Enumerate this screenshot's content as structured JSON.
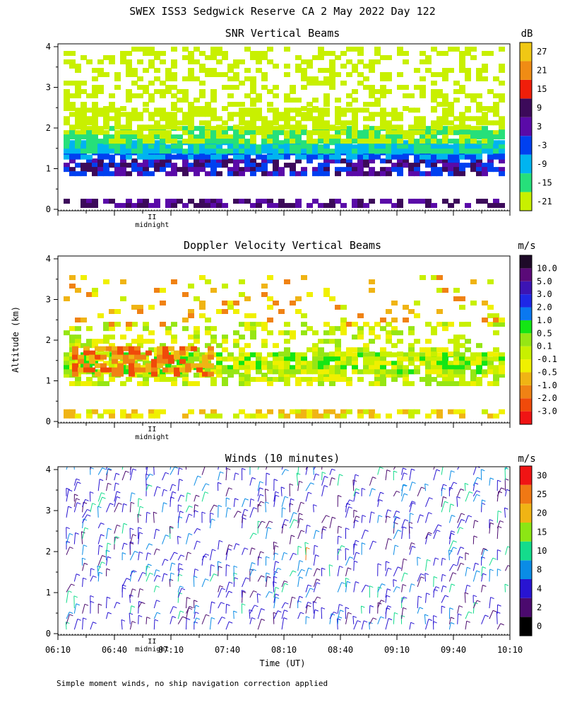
{
  "header": {
    "title": "SWEX ISS3 Sedgwick Reserve CA   2 May 2022 Day 122"
  },
  "footer": {
    "note": "Simple moment winds, no ship navigation correction applied"
  },
  "axes": {
    "ylabel": "Altitude (km)",
    "xlabel": "Time (UT)",
    "midnight_label": "midnight",
    "midnight_marker": "II"
  },
  "colors": {
    "snr": [
      "#c8f000",
      "#26e07a",
      "#00b4f0",
      "#0040f0",
      "#5a0aa8",
      "#3c0a5a",
      "#f01e0a",
      "#f08c14",
      "#f0c814"
    ],
    "doppler": [
      "#f01414",
      "#f04a0a",
      "#f08214",
      "#f0b414",
      "#f0f000",
      "#c8f000",
      "#96e614",
      "#14e614",
      "#0a78f0",
      "#1e28e6",
      "#3c14b4",
      "#5a0a78",
      "#1e0a28"
    ],
    "winds": [
      "#000000",
      "#4b0a6e",
      "#2814d2",
      "#0a8ce6",
      "#14dc8c",
      "#8ce614",
      "#f0b414",
      "#f07814",
      "#f01414"
    ]
  },
  "chart_data": [
    {
      "id": "snr",
      "type": "heatmap",
      "title": "SNR Vertical Beams",
      "unit": "dB",
      "ylim": [
        0,
        4
      ],
      "yticks": [
        "0",
        "1",
        "2",
        "3",
        "4"
      ],
      "xlim_hours": [
        6.1667,
        10.1667
      ],
      "colorbar_labels": [
        "-21",
        "-15",
        "-9",
        "-3",
        "3",
        "9",
        "15",
        "21",
        "27"
      ],
      "layers": [
        {
          "alt_km": [
            0.1,
            0.25
          ],
          "value_db": 9,
          "coverage": "intermittent"
        },
        {
          "alt_km": [
            0.9,
            1.3
          ],
          "value_db": 3,
          "coverage": "continuous"
        },
        {
          "alt_km": [
            1.3,
            1.6
          ],
          "value_db": -6,
          "coverage": "continuous"
        },
        {
          "alt_km": [
            1.6,
            2.4
          ],
          "value_db": -15,
          "coverage": "continuous"
        },
        {
          "alt_km": [
            2.4,
            4.0
          ],
          "value_db": -21,
          "coverage": "patchy"
        }
      ]
    },
    {
      "id": "doppler",
      "type": "heatmap",
      "title": "Doppler Velocity Vertical Beams",
      "unit": "m/s",
      "ylim": [
        0,
        4
      ],
      "yticks": [
        "0",
        "1",
        "2",
        "3",
        "4"
      ],
      "xlim_hours": [
        6.1667,
        10.1667
      ],
      "colorbar_labels": [
        "-3.0",
        "-2.0",
        "-1.0",
        "-0.5",
        "-0.1",
        "0.1",
        "0.5",
        "1.0",
        "2.0",
        "3.0",
        "5.0",
        "10.0"
      ],
      "layers": [
        {
          "alt_km": [
            0.1,
            0.3
          ],
          "value_ms": -0.1,
          "coverage": "intermittent"
        },
        {
          "alt_km": [
            0.9,
            1.7
          ],
          "value_ms": 0.3,
          "coverage": "continuous"
        },
        {
          "alt_km": [
            1.2,
            1.8
          ],
          "value_ms": -1.0,
          "coverage": "early hours"
        },
        {
          "alt_km": [
            1.7,
            2.4
          ],
          "value_ms": 0.1,
          "coverage": "patchy"
        },
        {
          "alt_km": [
            2.4,
            3.6
          ],
          "value_ms": 0.1,
          "coverage": "sparse"
        }
      ]
    },
    {
      "id": "winds",
      "type": "scatter",
      "title": "Winds (10 minutes)",
      "unit": "m/s",
      "ylim": [
        0,
        4
      ],
      "yticks": [
        "0",
        "1",
        "2",
        "3",
        "4"
      ],
      "xtick_labels": [
        "06:10",
        "06:40",
        "07:10",
        "07:40",
        "08:10",
        "08:40",
        "09:10",
        "09:40",
        "10:10"
      ],
      "colorbar_labels": [
        "0",
        "2",
        "4",
        "8",
        "10",
        "15",
        "20",
        "25",
        "30"
      ],
      "wind_speed_range_ms": [
        0,
        34
      ],
      "typical_speed_ms": 5
    }
  ]
}
